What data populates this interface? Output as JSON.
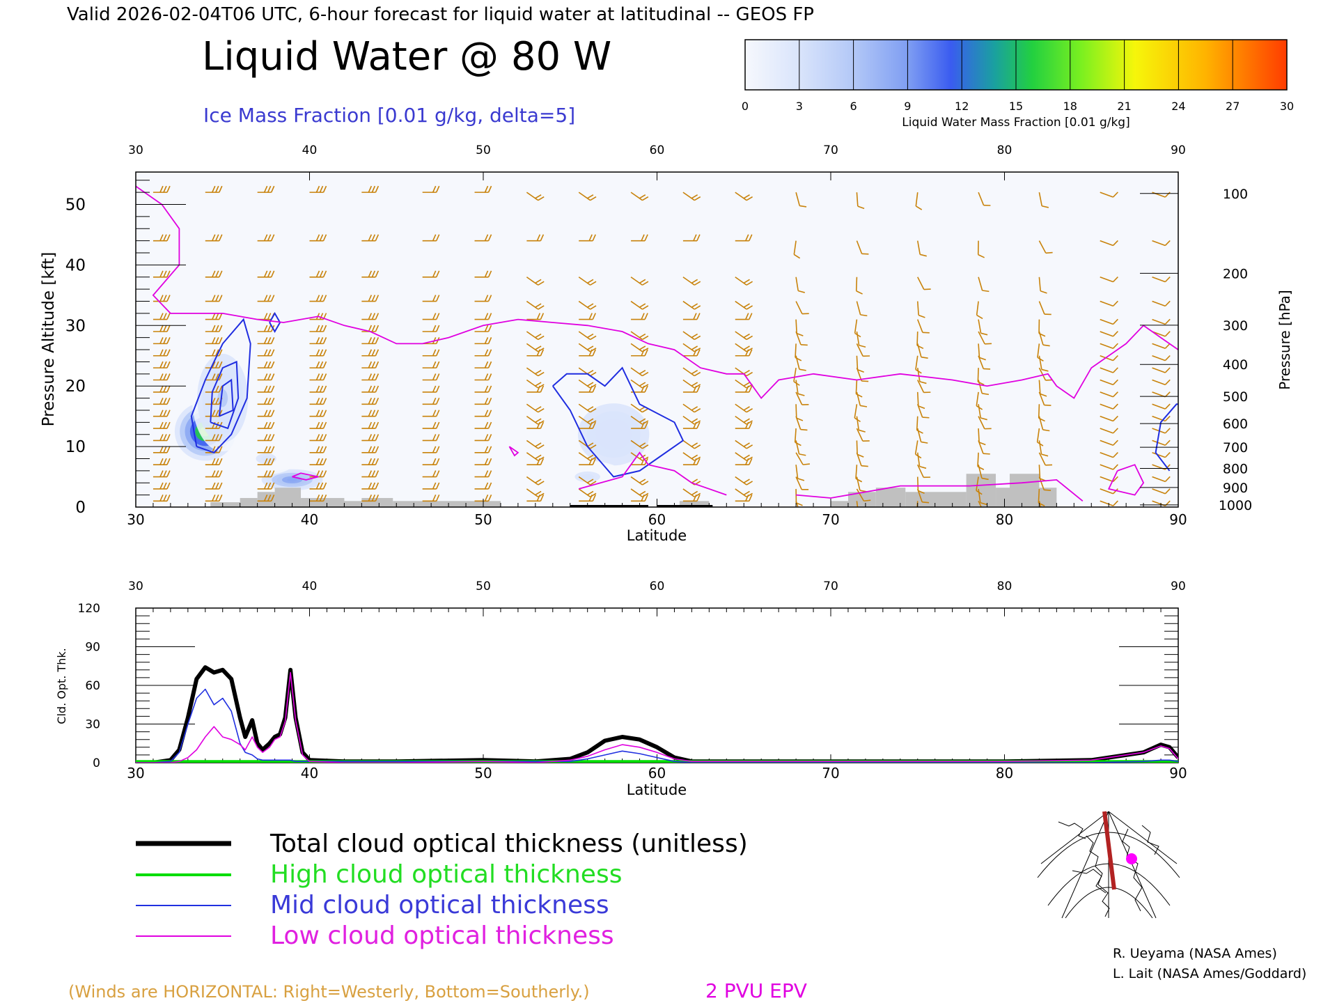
{
  "header": {
    "valid_line": "Valid 2026-02-04T06 UTC, 6-hour forecast for liquid water at latitudinal -- GEOS FP",
    "main_title": "Liquid Water @ 80 W",
    "ice_subtitle": "Ice Mass Fraction [0.01 g/kg, delta=5]"
  },
  "colorbar": {
    "label": "Liquid Water Mass Fraction [0.01 g/kg]",
    "ticks": [
      "0",
      "3",
      "6",
      "9",
      "12",
      "15",
      "18",
      "21",
      "24",
      "27",
      "30"
    ],
    "colors": [
      "#f6f8fd",
      "#d9e4fb",
      "#b3c8f7",
      "#8aa7f3",
      "#3a5cf0",
      "#1aa0a0",
      "#22d040",
      "#7af020",
      "#f6f60a",
      "#ffb300",
      "#ff3c00"
    ]
  },
  "colors": {
    "wind_barb": "#c8820a",
    "ice_contour": "#1f2de0",
    "epv_contour": "#e000e0",
    "terrain": "#c0c0c0",
    "total_line": "#000000",
    "high_line": "#00dd00",
    "mid_line": "#2030e0",
    "low_line": "#e000e0"
  },
  "cross_section": {
    "xlabel": "Latitude",
    "ylabel_left": "Pressure Altitude [kft]",
    "ylabel_right": "Pressure [hPa]",
    "xticks": [
      "30",
      "40",
      "50",
      "60",
      "70",
      "80",
      "90"
    ],
    "yticks_left": [
      "0",
      "10",
      "20",
      "30",
      "40",
      "50"
    ],
    "yticks_right": [
      "100",
      "200",
      "300",
      "400",
      "500",
      "600",
      "700",
      "800",
      "900",
      "1000"
    ]
  },
  "chart_data": [
    {
      "type": "heatmap",
      "title": "Liquid Water @ 80 W",
      "xlabel": "Latitude",
      "ylabel": "Pressure Altitude [kft]",
      "xlim": [
        30,
        90
      ],
      "ylim": [
        0,
        55
      ],
      "right_axis": {
        "label": "Pressure [hPa]",
        "ticks": [
          100,
          200,
          300,
          400,
          500,
          600,
          700,
          800,
          900,
          1000
        ]
      },
      "liquid_water_blobs": [
        {
          "lat": 34.0,
          "kft": 12.5,
          "peak": 20,
          "sigma_lat": 0.8,
          "sigma_kft": 2.2
        },
        {
          "lat": 35.0,
          "kft": 18.0,
          "peak": 5,
          "sigma_lat": 0.8,
          "sigma_kft": 4.0
        },
        {
          "lat": 39.0,
          "kft": 4.5,
          "peak": 9,
          "sigma_lat": 0.8,
          "sigma_kft": 0.8
        },
        {
          "lat": 37.5,
          "kft": 8.0,
          "peak": 2,
          "sigma_lat": 0.8,
          "sigma_kft": 1.2
        },
        {
          "lat": 57.5,
          "kft": 12.0,
          "peak": 4,
          "sigma_lat": 1.4,
          "sigma_kft": 3.5
        },
        {
          "lat": 56.0,
          "kft": 5.0,
          "peak": 2,
          "sigma_lat": 1.0,
          "sigma_kft": 1.2
        }
      ],
      "ice_contours": [
        {
          "points": [
            [
              33.5,
              10
            ],
            [
              33.2,
              15
            ],
            [
              34.0,
              21
            ],
            [
              35.0,
              27
            ],
            [
              36.2,
              31
            ],
            [
              36.6,
              27
            ],
            [
              36.4,
              18
            ],
            [
              35.5,
              12
            ],
            [
              34.5,
              9
            ],
            [
              33.5,
              10
            ]
          ]
        },
        {
          "points": [
            [
              34.3,
              14
            ],
            [
              34.4,
              19
            ],
            [
              35.0,
              23
            ],
            [
              35.8,
              24
            ],
            [
              35.9,
              18
            ],
            [
              35.3,
              13
            ],
            [
              34.3,
              14
            ]
          ]
        },
        {
          "points": [
            [
              34.8,
              15
            ],
            [
              35.0,
              20
            ],
            [
              35.5,
              21
            ],
            [
              35.6,
              16
            ],
            [
              34.8,
              15
            ]
          ]
        },
        {
          "points": [
            [
              37.7,
              30.5
            ],
            [
              38.0,
              32
            ],
            [
              38.3,
              30.5
            ],
            [
              38.0,
              29
            ],
            [
              37.7,
              30.5
            ]
          ]
        },
        {
          "points": [
            [
              54.0,
              20
            ],
            [
              55.0,
              16
            ],
            [
              56.0,
              10
            ],
            [
              57.5,
              5
            ],
            [
              59.0,
              6
            ],
            [
              60.0,
              8
            ],
            [
              61.5,
              11
            ],
            [
              61.0,
              14
            ],
            [
              59.0,
              17
            ],
            [
              58.0,
              23
            ],
            [
              57.0,
              20
            ],
            [
              56.0,
              22
            ],
            [
              54.8,
              22
            ],
            [
              54.0,
              20
            ]
          ]
        },
        {
          "points": [
            [
              89.5,
              6
            ],
            [
              88.7,
              9
            ],
            [
              89.0,
              14
            ],
            [
              89.9,
              17
            ],
            [
              90,
              17
            ]
          ]
        }
      ],
      "epv_2pvu": [
        {
          "points": [
            [
              30.0,
              53
            ],
            [
              31.5,
              50
            ],
            [
              32.5,
              46
            ],
            [
              32.5,
              40
            ],
            [
              31.0,
              35
            ],
            [
              32.0,
              32
            ],
            [
              35.0,
              32
            ],
            [
              37.0,
              31
            ],
            [
              38.5,
              30.5
            ],
            [
              40.5,
              31.5
            ],
            [
              42.0,
              30
            ],
            [
              43.5,
              29
            ],
            [
              45.0,
              27
            ],
            [
              46.5,
              27
            ],
            [
              48.0,
              28
            ],
            [
              50.0,
              30
            ],
            [
              52.0,
              31
            ],
            [
              54.0,
              30.5
            ],
            [
              56.0,
              30
            ],
            [
              58.0,
              29
            ],
            [
              59.5,
              27
            ],
            [
              61.0,
              26
            ],
            [
              62.5,
              23
            ],
            [
              64.0,
              22
            ],
            [
              65.0,
              22
            ],
            [
              66.0,
              18
            ],
            [
              67.0,
              21
            ],
            [
              69.0,
              22
            ],
            [
              71.5,
              21
            ],
            [
              74.0,
              22
            ],
            [
              77.0,
              21
            ],
            [
              79.0,
              20
            ],
            [
              81.0,
              21
            ],
            [
              82.5,
              22
            ],
            [
              83.0,
              20
            ],
            [
              84.0,
              18
            ],
            [
              85.0,
              23
            ],
            [
              87.0,
              27
            ],
            [
              88.0,
              30
            ],
            [
              89.0,
              28
            ],
            [
              90.0,
              26
            ]
          ]
        },
        {
          "points": [
            [
              55.5,
              3
            ],
            [
              58.0,
              5
            ],
            [
              59.0,
              9
            ],
            [
              59.5,
              7
            ],
            [
              61.0,
              6
            ],
            [
              62.0,
              4
            ],
            [
              64.0,
              2
            ]
          ]
        },
        {
          "points": [
            [
              68.0,
              2
            ],
            [
              70.0,
              1.5
            ],
            [
              74.0,
              3.5
            ],
            [
              78.0,
              3.5
            ],
            [
              81.0,
              4
            ],
            [
              83.0,
              4.5
            ],
            [
              84.5,
              1
            ]
          ]
        },
        {
          "points": [
            [
              86.5,
              6
            ],
            [
              87.5,
              7
            ],
            [
              88.0,
              4
            ],
            [
              87.5,
              2
            ],
            [
              86.0,
              3
            ],
            [
              86.5,
              6
            ]
          ]
        },
        {
          "points": [
            [
              39.0,
              5
            ],
            [
              39.8,
              4.5
            ],
            [
              40.5,
              5
            ],
            [
              39.5,
              5.6
            ],
            [
              39.0,
              5
            ]
          ]
        },
        {
          "points": [
            [
              51.5,
              10
            ],
            [
              52.0,
              9
            ],
            [
              51.8,
              8.5
            ],
            [
              51.5,
              10
            ]
          ]
        }
      ],
      "terrain": [
        {
          "lat0": 34.3,
          "lat1": 36.0,
          "kft": 0.8
        },
        {
          "lat0": 36.0,
          "lat1": 37.0,
          "kft": 1.5
        },
        {
          "lat0": 37.0,
          "lat1": 38.0,
          "kft": 2.5
        },
        {
          "lat0": 38.0,
          "lat1": 39.5,
          "kft": 3.2
        },
        {
          "lat0": 39.5,
          "lat1": 42.0,
          "kft": 1.5
        },
        {
          "lat0": 42.0,
          "lat1": 43.0,
          "kft": 1.0
        },
        {
          "lat0": 43.0,
          "lat1": 44.8,
          "kft": 1.5
        },
        {
          "lat0": 44.8,
          "lat1": 51.0,
          "kft": 1.0
        },
        {
          "lat0": 61.3,
          "lat1": 63.0,
          "kft": 1.0
        },
        {
          "lat0": 70.0,
          "lat1": 71.0,
          "kft": 1.0
        },
        {
          "lat0": 71.0,
          "lat1": 72.6,
          "kft": 2.5
        },
        {
          "lat0": 72.6,
          "lat1": 74.3,
          "kft": 3.2
        },
        {
          "lat0": 74.3,
          "lat1": 77.8,
          "kft": 2.5
        },
        {
          "lat0": 77.8,
          "lat1": 79.5,
          "kft": 5.5
        },
        {
          "lat0": 79.5,
          "lat1": 80.3,
          "kft": 3.2
        },
        {
          "lat0": 80.3,
          "lat1": 82.0,
          "kft": 5.5
        },
        {
          "lat0": 82.0,
          "lat1": 83.0,
          "kft": 3.2
        }
      ],
      "wind_barb_latitudes": [
        31,
        34,
        37,
        40,
        43,
        46.5,
        49.5,
        52.5,
        55.5,
        58.5,
        61.5,
        64.5,
        68,
        71.5,
        75,
        78.5,
        82,
        85.5,
        88.5
      ],
      "wind_barb_levels_kft": [
        1,
        3,
        5,
        7,
        9,
        11,
        13,
        15,
        17,
        19,
        21,
        23,
        25,
        27,
        29,
        31,
        34,
        38,
        44,
        52
      ]
    },
    {
      "type": "line",
      "xlabel": "Latitude",
      "ylabel": "Cld. Opt. Thk.",
      "xlim": [
        30,
        90
      ],
      "ylim": [
        0,
        120
      ],
      "yticks": [
        "0",
        "30",
        "60",
        "90",
        "120"
      ],
      "x": [
        30,
        31,
        32,
        32.5,
        33,
        33.5,
        34,
        34.5,
        35,
        35.5,
        36,
        36.3,
        36.7,
        37,
        37.3,
        37.7,
        38,
        38.3,
        38.6,
        38.9,
        39.2,
        39.6,
        40,
        42,
        45,
        50,
        53,
        55,
        56,
        57,
        58,
        59,
        60,
        61,
        62,
        63,
        65,
        70,
        80,
        85,
        88,
        89,
        89.5,
        90
      ],
      "series": [
        {
          "name": "Total cloud optical thickness (unitless)",
          "values": [
            0,
            0,
            2,
            10,
            35,
            65,
            74,
            70,
            72,
            65,
            35,
            20,
            33,
            15,
            10,
            15,
            20,
            22,
            35,
            72,
            35,
            8,
            2,
            1,
            1,
            2,
            1,
            3,
            8,
            17,
            20,
            18,
            12,
            4,
            1,
            1,
            1,
            1,
            1,
            2,
            8,
            14,
            12,
            4
          ]
        },
        {
          "name": "High cloud optical thickness",
          "values": [
            1,
            1,
            1,
            1,
            1,
            1,
            1,
            1,
            1,
            1,
            1,
            1,
            1,
            1,
            1,
            1,
            1,
            1,
            1,
            1,
            1,
            1,
            1,
            1,
            1,
            1,
            1,
            1,
            1,
            1,
            1,
            1,
            1,
            1,
            1,
            1,
            1,
            1,
            1,
            1,
            1,
            1,
            1,
            1
          ]
        },
        {
          "name": "Mid cloud optical thickness",
          "values": [
            0,
            0,
            1,
            8,
            30,
            50,
            57,
            45,
            50,
            40,
            15,
            8,
            6,
            3,
            2,
            2,
            2,
            2,
            2,
            2,
            1,
            1,
            1,
            1,
            1,
            1,
            1,
            1,
            3,
            6,
            9,
            7,
            4,
            1,
            0,
            0,
            0,
            0,
            0,
            0,
            1,
            2,
            2,
            1
          ]
        },
        {
          "name": "Low cloud optical thickness",
          "values": [
            0,
            0,
            0,
            1,
            4,
            10,
            20,
            28,
            20,
            18,
            14,
            10,
            20,
            12,
            8,
            12,
            18,
            20,
            32,
            70,
            33,
            6,
            1,
            0,
            0,
            1,
            0,
            2,
            5,
            10,
            14,
            12,
            8,
            3,
            1,
            1,
            1,
            1,
            1,
            2,
            8,
            13,
            11,
            3
          ]
        }
      ]
    }
  ],
  "legend": {
    "total": "Total cloud optical thickness (unitless)",
    "high": "High cloud optical thickness",
    "mid": "Mid cloud optical thickness",
    "low": "Low cloud optical thickness"
  },
  "credits": {
    "line1": "R. Ueyama (NASA Ames)",
    "line2": "L. Lait (NASA Ames/Goddard)"
  },
  "footer": {
    "winds_note": "(Winds are HORIZONTAL: Right=Westerly, Bottom=Southerly.)",
    "epv_label": "2 PVU EPV"
  }
}
